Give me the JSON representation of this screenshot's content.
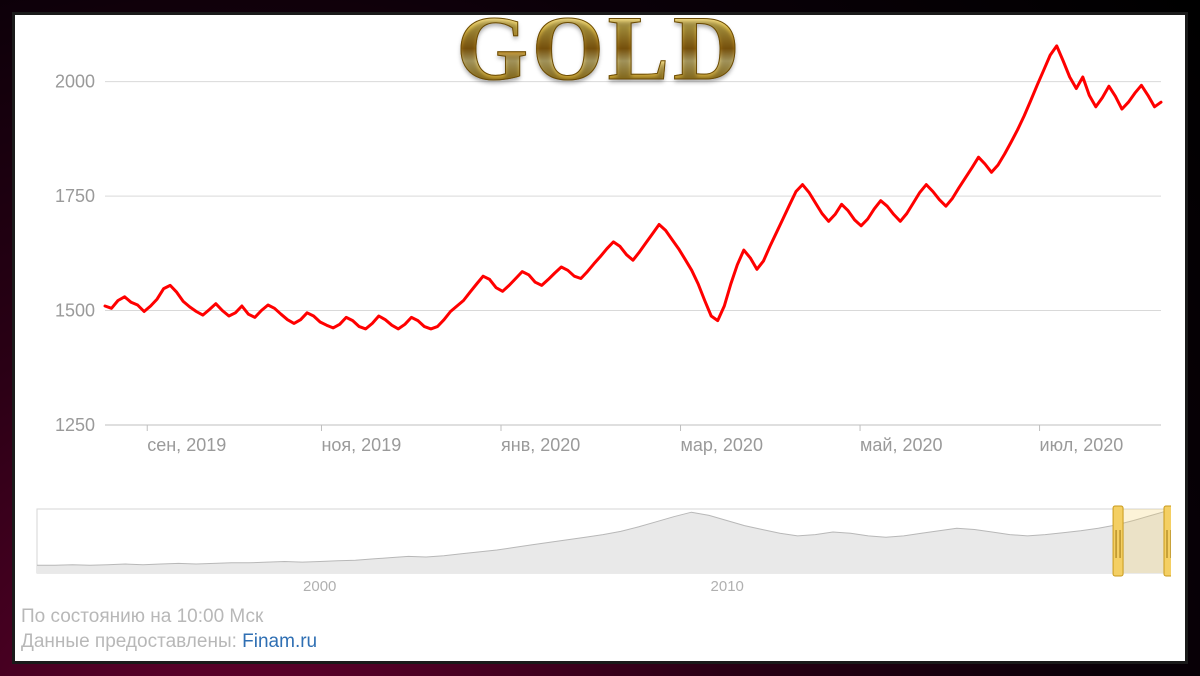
{
  "title": "GOLD",
  "chart": {
    "type": "line",
    "line_color": "#ff0000",
    "line_width": 3,
    "background_color": "#ffffff",
    "grid_color": "#d9d9d9",
    "axis_text_color": "#9a9a9a",
    "ylim": [
      1250,
      2080
    ],
    "yticks": [
      1250,
      1500,
      1750,
      2000
    ],
    "x_labels": [
      "сен, 2019",
      "ноя, 2019",
      "янв, 2020",
      "мар, 2020",
      "май, 2020",
      "июл, 2020"
    ],
    "x_positions": [
      0.04,
      0.205,
      0.375,
      0.545,
      0.715,
      0.885
    ],
    "label_fontsize": 18,
    "series": [
      1510,
      1505,
      1522,
      1530,
      1518,
      1512,
      1498,
      1510,
      1525,
      1548,
      1555,
      1540,
      1520,
      1508,
      1498,
      1490,
      1502,
      1515,
      1500,
      1488,
      1495,
      1510,
      1492,
      1485,
      1500,
      1512,
      1505,
      1492,
      1480,
      1472,
      1480,
      1495,
      1488,
      1475,
      1468,
      1462,
      1470,
      1485,
      1478,
      1465,
      1460,
      1472,
      1488,
      1480,
      1468,
      1460,
      1470,
      1485,
      1478,
      1465,
      1460,
      1465,
      1480,
      1498,
      1510,
      1522,
      1540,
      1558,
      1575,
      1568,
      1550,
      1542,
      1555,
      1570,
      1585,
      1578,
      1562,
      1555,
      1568,
      1582,
      1595,
      1588,
      1575,
      1570,
      1585,
      1602,
      1618,
      1635,
      1650,
      1640,
      1622,
      1610,
      1628,
      1648,
      1668,
      1688,
      1675,
      1655,
      1635,
      1612,
      1588,
      1558,
      1522,
      1488,
      1478,
      1510,
      1558,
      1600,
      1632,
      1615,
      1590,
      1608,
      1640,
      1670,
      1700,
      1730,
      1760,
      1775,
      1758,
      1735,
      1712,
      1695,
      1710,
      1732,
      1718,
      1698,
      1685,
      1700,
      1722,
      1740,
      1728,
      1710,
      1695,
      1712,
      1735,
      1758,
      1775,
      1760,
      1742,
      1728,
      1745,
      1768,
      1790,
      1812,
      1835,
      1820,
      1802,
      1818,
      1842,
      1868,
      1895,
      1925,
      1958,
      1992,
      2025,
      2058,
      2078,
      2045,
      2010,
      1985,
      2010,
      1970,
      1945,
      1965,
      1990,
      1968,
      1940,
      1955,
      1975,
      1992,
      1970,
      1945,
      1955
    ]
  },
  "overview": {
    "type": "area",
    "area_color": "#e9e9e9",
    "line_color": "#b8b8b8",
    "handle_color": "#f4cf63",
    "x_labels": [
      "2000",
      "2010"
    ],
    "x_positions": [
      0.235,
      0.595
    ],
    "selection": [
      0.955,
      1.0
    ],
    "series": [
      0.12,
      0.12,
      0.13,
      0.12,
      0.13,
      0.14,
      0.13,
      0.14,
      0.15,
      0.14,
      0.15,
      0.16,
      0.16,
      0.17,
      0.18,
      0.17,
      0.18,
      0.19,
      0.2,
      0.22,
      0.24,
      0.26,
      0.25,
      0.27,
      0.3,
      0.33,
      0.36,
      0.4,
      0.44,
      0.48,
      0.52,
      0.56,
      0.6,
      0.65,
      0.72,
      0.8,
      0.88,
      0.95,
      0.9,
      0.82,
      0.74,
      0.68,
      0.62,
      0.58,
      0.6,
      0.64,
      0.62,
      0.58,
      0.56,
      0.58,
      0.62,
      0.66,
      0.7,
      0.68,
      0.64,
      0.6,
      0.58,
      0.6,
      0.63,
      0.66,
      0.7,
      0.75,
      0.82,
      0.9,
      0.98
    ]
  },
  "footer": {
    "status_text": "По состоянию на 10:00 Мск",
    "source_prefix": "Данные предоставлены: ",
    "source_link_text": "Finam.ru"
  }
}
